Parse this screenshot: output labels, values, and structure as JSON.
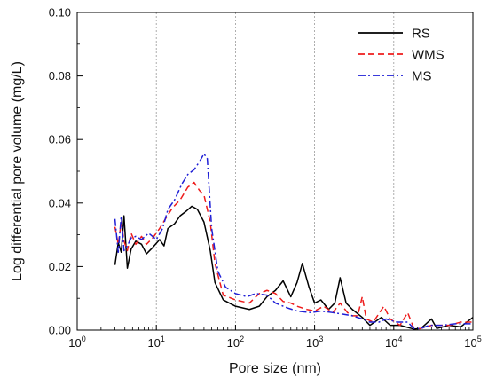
{
  "chart_data": {
    "type": "line",
    "title": "",
    "xlabel": "Pore size (nm)",
    "ylabel": "Log differential pore volume (mg/L)",
    "x_scale": "log",
    "xlim": [
      1,
      100000
    ],
    "ylim": [
      0,
      0.1
    ],
    "x_ticks": [
      {
        "value": 1,
        "base": "10",
        "exp": "0"
      },
      {
        "value": 10,
        "base": "10",
        "exp": "1"
      },
      {
        "value": 100,
        "base": "10",
        "exp": "2"
      },
      {
        "value": 1000,
        "base": "10",
        "exp": "3"
      },
      {
        "value": 10000,
        "base": "10",
        "exp": "4"
      },
      {
        "value": 100000,
        "base": "10",
        "exp": "5"
      }
    ],
    "y_ticks": [
      {
        "value": 0,
        "label": "0.00"
      },
      {
        "value": 0.02,
        "label": "0.02"
      },
      {
        "value": 0.04,
        "label": "0.04"
      },
      {
        "value": 0.06,
        "label": "0.06"
      },
      {
        "value": 0.08,
        "label": "0.08"
      },
      {
        "value": 0.1,
        "label": "0.10"
      }
    ],
    "vertical_gridlines": [
      10,
      100,
      1000,
      10000
    ],
    "legend_position": "top-right",
    "series": [
      {
        "name": "RS",
        "color": "#000000",
        "dash": "solid",
        "points": [
          [
            3.0,
            0.0205
          ],
          [
            3.3,
            0.0275
          ],
          [
            3.6,
            0.0245
          ],
          [
            3.9,
            0.036
          ],
          [
            4.3,
            0.0195
          ],
          [
            4.8,
            0.0255
          ],
          [
            5.5,
            0.028
          ],
          [
            6.5,
            0.027
          ],
          [
            7.5,
            0.024
          ],
          [
            9,
            0.026
          ],
          [
            11,
            0.0285
          ],
          [
            12.5,
            0.0265
          ],
          [
            14,
            0.032
          ],
          [
            17,
            0.0335
          ],
          [
            20,
            0.036
          ],
          [
            24,
            0.0375
          ],
          [
            28,
            0.039
          ],
          [
            33,
            0.038
          ],
          [
            40,
            0.034
          ],
          [
            48,
            0.025
          ],
          [
            55,
            0.015
          ],
          [
            70,
            0.0095
          ],
          [
            100,
            0.0075
          ],
          [
            150,
            0.0065
          ],
          [
            200,
            0.0075
          ],
          [
            250,
            0.0105
          ],
          [
            320,
            0.0125
          ],
          [
            400,
            0.0155
          ],
          [
            500,
            0.0105
          ],
          [
            600,
            0.015
          ],
          [
            700,
            0.021
          ],
          [
            850,
            0.0135
          ],
          [
            1000,
            0.0085
          ],
          [
            1200,
            0.0095
          ],
          [
            1500,
            0.0065
          ],
          [
            1800,
            0.0085
          ],
          [
            2100,
            0.0165
          ],
          [
            2500,
            0.0085
          ],
          [
            3000,
            0.0065
          ],
          [
            4000,
            0.004
          ],
          [
            5000,
            0.0015
          ],
          [
            7000,
            0.004
          ],
          [
            9000,
            0.0015
          ],
          [
            12000,
            0.0015
          ],
          [
            18000,
            0.0003
          ],
          [
            22000,
            0.0005
          ],
          [
            30000,
            0.0035
          ],
          [
            35000,
            0.0005
          ],
          [
            50000,
            0.0015
          ],
          [
            70000,
            0.001
          ],
          [
            100000,
            0.004
          ]
        ]
      },
      {
        "name": "WMS",
        "color": "#ee1c1c",
        "dash": "dashed",
        "points": [
          [
            3.0,
            0.0325
          ],
          [
            3.3,
            0.027
          ],
          [
            3.6,
            0.034
          ],
          [
            3.9,
            0.028
          ],
          [
            4.3,
            0.025
          ],
          [
            4.8,
            0.0305
          ],
          [
            5.5,
            0.027
          ],
          [
            6.5,
            0.0295
          ],
          [
            7.5,
            0.027
          ],
          [
            9,
            0.029
          ],
          [
            11,
            0.032
          ],
          [
            13,
            0.035
          ],
          [
            16,
            0.0385
          ],
          [
            20,
            0.041
          ],
          [
            25,
            0.045
          ],
          [
            30,
            0.0465
          ],
          [
            35,
            0.044
          ],
          [
            40,
            0.0425
          ],
          [
            48,
            0.034
          ],
          [
            55,
            0.021
          ],
          [
            70,
            0.011
          ],
          [
            100,
            0.0095
          ],
          [
            150,
            0.0085
          ],
          [
            200,
            0.0115
          ],
          [
            250,
            0.0125
          ],
          [
            320,
            0.0115
          ],
          [
            400,
            0.009
          ],
          [
            500,
            0.0085
          ],
          [
            600,
            0.0075
          ],
          [
            800,
            0.0065
          ],
          [
            1000,
            0.006
          ],
          [
            1300,
            0.0075
          ],
          [
            1700,
            0.0055
          ],
          [
            2100,
            0.0085
          ],
          [
            2600,
            0.0055
          ],
          [
            3000,
            0.0045
          ],
          [
            3500,
            0.0045
          ],
          [
            4000,
            0.0105
          ],
          [
            4500,
            0.0035
          ],
          [
            5500,
            0.0025
          ],
          [
            7500,
            0.0075
          ],
          [
            9000,
            0.0035
          ],
          [
            12000,
            0.0015
          ],
          [
            15000,
            0.0055
          ],
          [
            18000,
            0.0005
          ],
          [
            22000,
            0.0005
          ],
          [
            30000,
            0.0015
          ],
          [
            50000,
            0.0015
          ],
          [
            70000,
            0.0025
          ],
          [
            100000,
            0.0025
          ]
        ]
      },
      {
        "name": "MS",
        "color": "#1f1fd6",
        "dash": "dashdot",
        "points": [
          [
            3.0,
            0.035
          ],
          [
            3.3,
            0.0245
          ],
          [
            3.6,
            0.036
          ],
          [
            3.9,
            0.025
          ],
          [
            4.3,
            0.0265
          ],
          [
            4.8,
            0.029
          ],
          [
            5.5,
            0.0295
          ],
          [
            6.5,
            0.0285
          ],
          [
            8,
            0.0305
          ],
          [
            10,
            0.0285
          ],
          [
            12,
            0.032
          ],
          [
            14,
            0.038
          ],
          [
            17,
            0.041
          ],
          [
            21,
            0.046
          ],
          [
            25,
            0.049
          ],
          [
            30,
            0.0505
          ],
          [
            35,
            0.053
          ],
          [
            40,
            0.0555
          ],
          [
            44,
            0.054
          ],
          [
            50,
            0.032
          ],
          [
            60,
            0.0185
          ],
          [
            75,
            0.0135
          ],
          [
            100,
            0.0115
          ],
          [
            140,
            0.0105
          ],
          [
            180,
            0.0115
          ],
          [
            250,
            0.011
          ],
          [
            320,
            0.0085
          ],
          [
            450,
            0.007
          ],
          [
            600,
            0.006
          ],
          [
            900,
            0.0055
          ],
          [
            1200,
            0.006
          ],
          [
            1700,
            0.0055
          ],
          [
            2300,
            0.005
          ],
          [
            3000,
            0.0045
          ],
          [
            4000,
            0.0035
          ],
          [
            5000,
            0.0025
          ],
          [
            6500,
            0.0025
          ],
          [
            8000,
            0.0035
          ],
          [
            11000,
            0.0025
          ],
          [
            15000,
            0.0025
          ],
          [
            18000,
            0.0005
          ],
          [
            22000,
            0.0005
          ],
          [
            28000,
            0.0015
          ],
          [
            40000,
            0.0015
          ],
          [
            60000,
            0.002
          ],
          [
            100000,
            0.002
          ]
        ]
      }
    ]
  }
}
